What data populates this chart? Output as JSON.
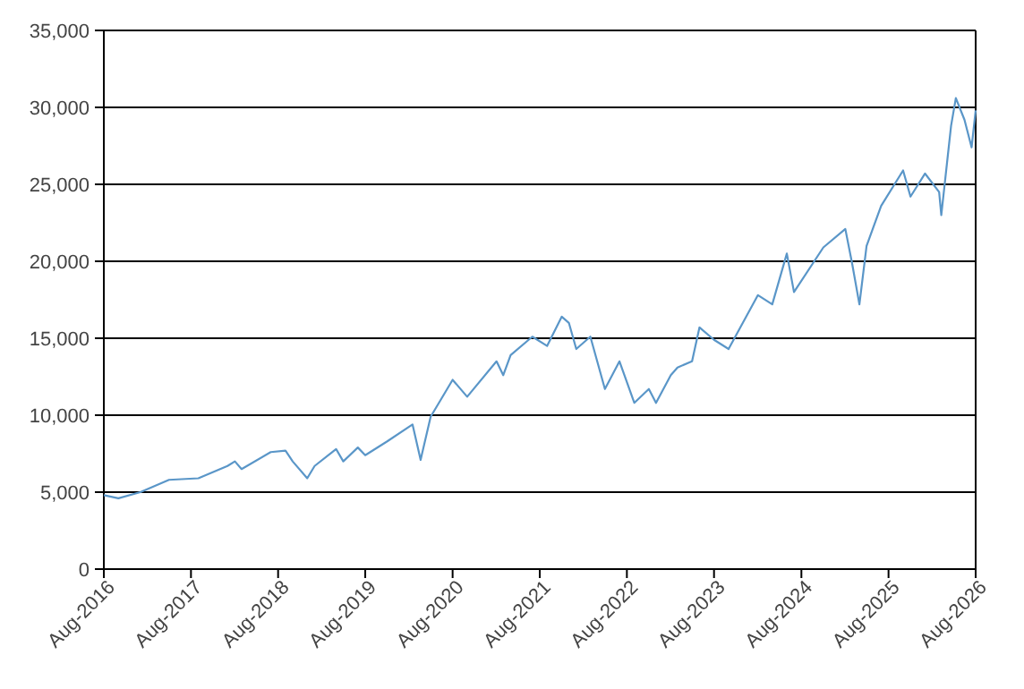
{
  "chart_data": {
    "type": "line",
    "x": [
      "2016-08",
      "2016-10",
      "2017-01",
      "2017-05",
      "2017-09",
      "2018-01",
      "2018-02",
      "2018-03",
      "2018-07",
      "2018-09",
      "2018-10",
      "2018-12",
      "2019-01",
      "2019-04",
      "2019-05",
      "2019-07",
      "2019-08",
      "2019-11",
      "2020-02-15",
      "2020-03-20",
      "2020-05",
      "2020-08",
      "2020-10",
      "2021-02",
      "2021-03",
      "2021-04",
      "2021-07",
      "2021-09",
      "2021-11",
      "2021-12",
      "2022-01",
      "2022-03",
      "2022-05",
      "2022-07",
      "2022-09",
      "2022-11",
      "2022-12",
      "2023-02",
      "2023-03",
      "2023-05",
      "2023-06",
      "2023-08",
      "2023-10",
      "2024-02",
      "2024-04",
      "2024-06",
      "2024-07",
      "2024-11",
      "2025-02",
      "2025-03",
      "2025-04",
      "2025-05",
      "2025-07",
      "2025-10",
      "2025-11",
      "2026-01",
      "2026-03-01",
      "2026-03-10",
      "2026-04-20",
      "2026-05-10",
      "2026-06-15",
      "2026-07-15",
      "2026-08"
    ],
    "series": [
      {
        "color": "#5a96c8",
        "values": [
          4800,
          4600,
          5000,
          5800,
          5900,
          6700,
          7000,
          6500,
          7600,
          7700,
          7000,
          5900,
          6700,
          7800,
          7000,
          7900,
          7400,
          8300,
          9400,
          7100,
          9900,
          12300,
          11200,
          13500,
          12600,
          13900,
          15100,
          14500,
          16400,
          16000,
          14300,
          15100,
          11700,
          13500,
          10800,
          11700,
          10800,
          12600,
          13100,
          13500,
          15700,
          14900,
          14300,
          17800,
          17200,
          20500,
          18000,
          20900,
          22100,
          19900,
          17200,
          21000,
          23600,
          25900,
          24200,
          25700,
          24500,
          23000,
          28800,
          30600,
          29200,
          27400,
          29800
        ]
      }
    ],
    "xlim": [
      "2016-08",
      "2026-08"
    ],
    "xticks": [
      {
        "value": "2016-08",
        "label": "Aug-2016"
      },
      {
        "value": "2017-08",
        "label": "Aug-2017"
      },
      {
        "value": "2018-08",
        "label": "Aug-2018"
      },
      {
        "value": "2019-08",
        "label": "Aug-2019"
      },
      {
        "value": "2020-08",
        "label": "Aug-2020"
      },
      {
        "value": "2021-08",
        "label": "Aug-2021"
      },
      {
        "value": "2022-08",
        "label": "Aug-2022"
      },
      {
        "value": "2023-08",
        "label": "Aug-2023"
      },
      {
        "value": "2024-08",
        "label": "Aug-2024"
      },
      {
        "value": "2025-08",
        "label": "Aug-2025"
      },
      {
        "value": "2026-08",
        "label": "Aug-2026"
      }
    ],
    "ylim": [
      0,
      35000
    ],
    "yticks": [
      {
        "value": 0,
        "label": "0"
      },
      {
        "value": 5000,
        "label": "5,000"
      },
      {
        "value": 10000,
        "label": "10,000"
      },
      {
        "value": 15000,
        "label": "15,000"
      },
      {
        "value": 20000,
        "label": "20,000"
      },
      {
        "value": 25000,
        "label": "25,000"
      },
      {
        "value": 30000,
        "label": "30,000"
      },
      {
        "value": 35000,
        "label": "35,000"
      }
    ],
    "grid": "y",
    "line_style": "solid"
  }
}
